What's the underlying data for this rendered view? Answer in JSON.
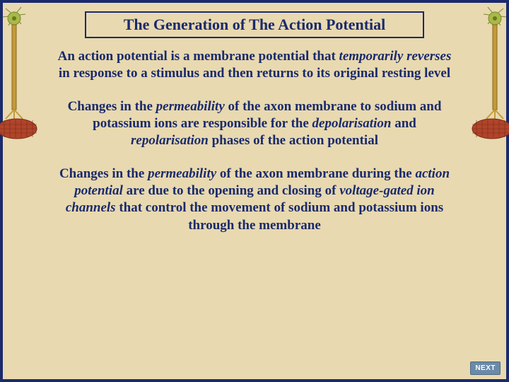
{
  "colors": {
    "background": "#e8d9b0",
    "border": "#1a2a6c",
    "text": "#1a2a6c",
    "button_bg": "#6b8aa8",
    "button_text": "#ffffff",
    "neuron_soma": "#a8b84a",
    "neuron_axon": "#c49a3a",
    "neuron_muscle": "#b0442a"
  },
  "typography": {
    "title_fontsize": 22,
    "body_fontsize": 19,
    "button_fontsize": 10,
    "font_family": "Times New Roman"
  },
  "title": "The Generation of The Action Potential",
  "paragraphs": [
    {
      "runs": [
        {
          "t": "An action potential is a membrane potential that "
        },
        {
          "t": "temporarily reverses",
          "em": true
        },
        {
          "t": " in response to a stimulus and then returns to its original resting level"
        }
      ]
    },
    {
      "runs": [
        {
          "t": "Changes in the "
        },
        {
          "t": "permeability",
          "em": true
        },
        {
          "t": " of the axon membrane to sodium and potassium ions are responsible for the "
        },
        {
          "t": "depolarisation",
          "em": true
        },
        {
          "t": " and "
        },
        {
          "t": "repolarisation",
          "em": true
        },
        {
          "t": " phases of the action potential"
        }
      ]
    },
    {
      "runs": [
        {
          "t": "Changes in the "
        },
        {
          "t": "permeability",
          "em": true
        },
        {
          "t": " of the axon membrane during the "
        },
        {
          "t": "action potential",
          "em": true
        },
        {
          "t": " are due to the opening and closing of "
        },
        {
          "t": "voltage-gated ion channels",
          "em": true
        },
        {
          "t": " that control the movement of sodium and potassium ions through the membrane"
        }
      ]
    }
  ],
  "button": {
    "label": "NEXT"
  }
}
